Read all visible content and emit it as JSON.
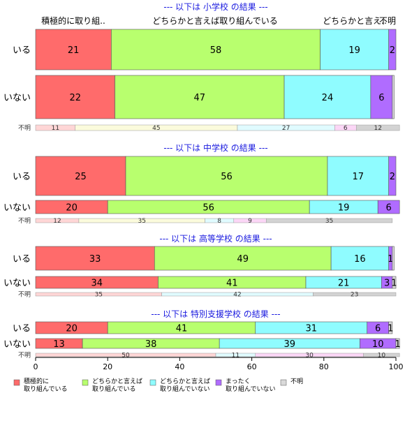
{
  "chart_data": {
    "type": "bar",
    "orientation": "horizontal",
    "stacked": true,
    "xlim": [
      0,
      100
    ],
    "x_ticks": [
      "0",
      "20",
      "40",
      "60",
      "80",
      "100"
    ],
    "column_headers": [
      "積極的に取り組..",
      "どちらかと言えば取り組んでいる",
      "どちらかと言え..",
      "不明"
    ],
    "legend": {
      "placement": "bottom",
      "entries": [
        "積極的に\n取り組んでいる",
        "どちらかと言えば\n取り組んでいる",
        "どちらかと言えば\n取り組んでいない",
        "まったく\n取り組んでいない",
        "不明"
      ]
    },
    "colors": [
      "#ff6b6b",
      "#b8ff6e",
      "#8ffcff",
      "#b06cff",
      "#d9d9d9"
    ],
    "light_colors": [
      "#ffd6d6",
      "#fbfbdc",
      "#e0fbff",
      "#fbd6f6",
      "#d3d3d3"
    ],
    "panels": [
      {
        "title": "--- 以下は 小学校 の結果 ---",
        "rows": [
          {
            "label": "いる",
            "values": [
              21,
              58,
              19,
              2,
              0
            ],
            "labels": [
              "21",
              "58",
              "19",
              "2",
              ""
            ]
          },
          {
            "label": "いない",
            "values": [
              22,
              47,
              24,
              6,
              0.5
            ],
            "labels": [
              "22",
              "47",
              "24",
              "6",
              ""
            ]
          }
        ],
        "unknown": {
          "label": "不明",
          "values": [
            11,
            45,
            27,
            6,
            12
          ],
          "labels": [
            "11",
            "45",
            "27",
            "6",
            "12"
          ]
        }
      },
      {
        "title": "--- 以下は 中学校 の結果 ---",
        "rows": [
          {
            "label": "いる",
            "values": [
              25,
              56,
              17,
              2,
              0
            ],
            "labels": [
              "25",
              "56",
              "17",
              "2",
              ""
            ]
          },
          {
            "label": "いない",
            "values": [
              20,
              56,
              19,
              6,
              0
            ],
            "labels": [
              "20",
              "56",
              "19",
              "6",
              ""
            ]
          }
        ],
        "unknown": {
          "label": "不明",
          "values": [
            12,
            35,
            8,
            9,
            35
          ],
          "labels": [
            "12",
            "35",
            "8",
            "9",
            "35"
          ]
        }
      },
      {
        "title": "--- 以下は 高等学校 の結果 ---",
        "rows": [
          {
            "label": "いる",
            "values": [
              33,
              49,
              16,
              1,
              0.5
            ],
            "labels": [
              "33",
              "49",
              "16",
              "1",
              ""
            ]
          },
          {
            "label": "いない",
            "values": [
              34,
              41,
              21,
              3,
              1
            ],
            "labels": [
              "34",
              "41",
              "21",
              "3",
              "1"
            ]
          }
        ],
        "unknown": {
          "label": "不明",
          "values": [
            35,
            0,
            42,
            0,
            23
          ],
          "labels": [
            "35",
            "",
            "42",
            "",
            "23"
          ]
        }
      },
      {
        "title": "--- 以下は 特別支援学校 の結果 ---",
        "rows": [
          {
            "label": "いる",
            "values": [
              20,
              41,
              31,
              6,
              1
            ],
            "labels": [
              "20",
              "41",
              "31",
              "6",
              "1"
            ]
          },
          {
            "label": "いない",
            "values": [
              13,
              38,
              39,
              10,
              1
            ],
            "labels": [
              "13",
              "38",
              "39",
              "10",
              "1"
            ]
          }
        ],
        "unknown": {
          "label": "不明",
          "values": [
            50,
            0,
            11,
            30,
            10
          ],
          "labels": [
            "50",
            "",
            "11",
            "30",
            "10"
          ]
        }
      }
    ]
  }
}
